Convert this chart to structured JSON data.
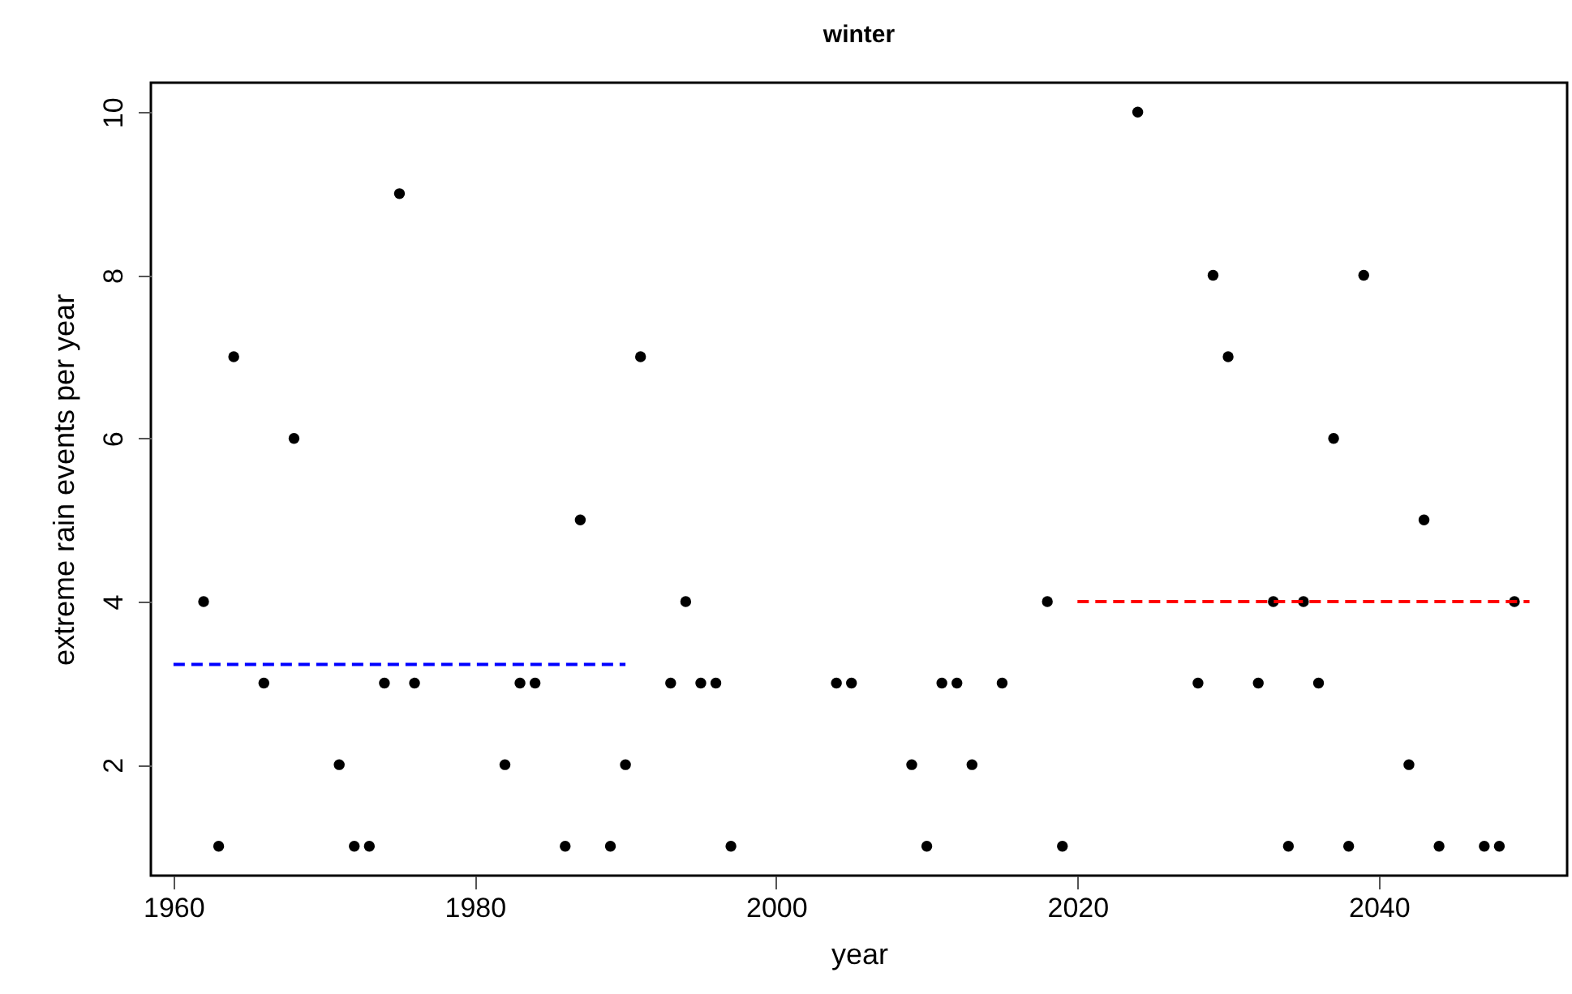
{
  "chart_data": {
    "type": "scatter",
    "title": "winter",
    "xlabel": "year",
    "ylabel": "extreme rain events per year",
    "xlim": [
      1958.5,
      2052.5
    ],
    "ylim": [
      0.64,
      10.36
    ],
    "xticks": [
      1960,
      1980,
      2000,
      2020,
      2040
    ],
    "yticks": [
      2,
      4,
      6,
      8,
      10
    ],
    "marker": "circle",
    "series": [
      {
        "color": "#000000",
        "x": [
          1962,
          1963,
          1964,
          1966,
          1968,
          1971,
          1972,
          1973,
          1974,
          1975,
          1976,
          1982,
          1983,
          1984,
          1986,
          1987,
          1989,
          1990,
          1991,
          1993,
          1994,
          1995,
          1996,
          1997,
          2004,
          2005,
          2009,
          2010,
          2011,
          2012,
          2013,
          2015,
          2018,
          2019,
          2024,
          2028,
          2029,
          2030,
          2032,
          2033,
          2034,
          2035,
          2036,
          2037,
          2038,
          2039,
          2042,
          2043,
          2044,
          2047,
          2048,
          2049
        ],
        "values": [
          4,
          1,
          7,
          3,
          6,
          2,
          1,
          1,
          3,
          9,
          3,
          2,
          3,
          3,
          1,
          5,
          1,
          2,
          7,
          3,
          4,
          3,
          3,
          1,
          3,
          3,
          2,
          1,
          3,
          3,
          2,
          3,
          4,
          1,
          10,
          3,
          8,
          7,
          3,
          4,
          1,
          4,
          3,
          6,
          1,
          8,
          2,
          5,
          1,
          1,
          1,
          4
        ]
      },
      {
        "type": "line",
        "color": "#0000ff",
        "line_style": "dashed",
        "marker": "none",
        "x": [
          1960,
          1990
        ],
        "values": [
          3.23,
          3.23
        ]
      },
      {
        "type": "line",
        "color": "#ff0000",
        "line_style": "dashed",
        "marker": "none",
        "x": [
          2020,
          2050
        ],
        "values": [
          4,
          4
        ]
      }
    ]
  }
}
